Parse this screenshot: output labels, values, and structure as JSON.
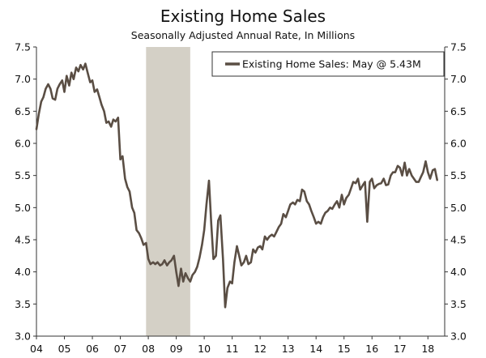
{
  "chart_data": {
    "type": "line",
    "title": "Existing Home Sales",
    "subtitle": "Seasonally Adjusted Annual Rate, In Millions",
    "legend": {
      "label": "Existing Home Sales: May @ 5.43M",
      "placement": "top-right"
    },
    "y_ticks": [
      "3.0",
      "3.5",
      "4.0",
      "4.5",
      "5.0",
      "5.5",
      "6.0",
      "6.5",
      "7.0",
      "7.5"
    ],
    "x_ticks": [
      "04",
      "05",
      "06",
      "07",
      "08",
      "09",
      "10",
      "11",
      "12",
      "13",
      "14",
      "15",
      "16",
      "17",
      "18"
    ],
    "ylim": [
      3.0,
      7.5
    ],
    "xlim": [
      2004.0,
      2018.6
    ],
    "recession": {
      "start": 2007.92,
      "end": 2009.5
    },
    "colors": {
      "line": "#5a4e44",
      "recession": "#d4d0c6",
      "axis": "#333333"
    },
    "series": [
      {
        "name": "Existing Home Sales: May @ 5.43M",
        "x": [
          2004.0,
          2004.08,
          2004.17,
          2004.25,
          2004.33,
          2004.42,
          2004.5,
          2004.58,
          2004.67,
          2004.75,
          2004.83,
          2004.92,
          2005.0,
          2005.08,
          2005.17,
          2005.25,
          2005.33,
          2005.42,
          2005.5,
          2005.58,
          2005.67,
          2005.75,
          2005.83,
          2005.92,
          2006.0,
          2006.08,
          2006.17,
          2006.25,
          2006.33,
          2006.42,
          2006.5,
          2006.58,
          2006.67,
          2006.75,
          2006.83,
          2006.92,
          2007.0,
          2007.08,
          2007.17,
          2007.25,
          2007.33,
          2007.42,
          2007.5,
          2007.58,
          2007.67,
          2007.75,
          2007.83,
          2007.92,
          2008.0,
          2008.08,
          2008.17,
          2008.25,
          2008.33,
          2008.42,
          2008.5,
          2008.58,
          2008.67,
          2008.75,
          2008.83,
          2008.92,
          2009.0,
          2009.08,
          2009.17,
          2009.25,
          2009.33,
          2009.42,
          2009.5,
          2009.58,
          2009.67,
          2009.75,
          2009.83,
          2009.92,
          2010.0,
          2010.08,
          2010.17,
          2010.25,
          2010.33,
          2010.42,
          2010.5,
          2010.58,
          2010.67,
          2010.75,
          2010.83,
          2010.92,
          2011.0,
          2011.08,
          2011.17,
          2011.25,
          2011.33,
          2011.42,
          2011.5,
          2011.58,
          2011.67,
          2011.75,
          2011.83,
          2011.92,
          2012.0,
          2012.08,
          2012.17,
          2012.25,
          2012.33,
          2012.42,
          2012.5,
          2012.58,
          2012.67,
          2012.75,
          2012.83,
          2012.92,
          2013.0,
          2013.08,
          2013.17,
          2013.25,
          2013.33,
          2013.42,
          2013.5,
          2013.58,
          2013.67,
          2013.75,
          2013.83,
          2013.92,
          2014.0,
          2014.08,
          2014.17,
          2014.25,
          2014.33,
          2014.42,
          2014.5,
          2014.58,
          2014.67,
          2014.75,
          2014.83,
          2014.92,
          2015.0,
          2015.08,
          2015.17,
          2015.25,
          2015.33,
          2015.42,
          2015.5,
          2015.58,
          2015.67,
          2015.75,
          2015.83,
          2015.92,
          2016.0,
          2016.08,
          2016.17,
          2016.25,
          2016.33,
          2016.42,
          2016.5,
          2016.58,
          2016.67,
          2016.75,
          2016.83,
          2016.92,
          2017.0,
          2017.08,
          2017.17,
          2017.25,
          2017.33,
          2017.42,
          2017.5,
          2017.58,
          2017.67,
          2017.75,
          2017.83,
          2017.92,
          2018.0,
          2018.08,
          2018.17,
          2018.25,
          2018.33
        ],
        "y": [
          6.22,
          6.45,
          6.65,
          6.72,
          6.85,
          6.92,
          6.85,
          6.7,
          6.68,
          6.85,
          6.92,
          6.98,
          6.8,
          7.05,
          6.9,
          7.1,
          7.0,
          7.18,
          7.12,
          7.22,
          7.15,
          7.24,
          7.1,
          6.95,
          6.98,
          6.8,
          6.84,
          6.72,
          6.6,
          6.5,
          6.32,
          6.34,
          6.26,
          6.37,
          6.34,
          6.4,
          5.75,
          5.8,
          5.45,
          5.32,
          5.25,
          5.0,
          4.92,
          4.65,
          4.6,
          4.52,
          4.42,
          4.45,
          4.2,
          4.12,
          4.15,
          4.12,
          4.15,
          4.1,
          4.12,
          4.18,
          4.1,
          4.15,
          4.18,
          4.25,
          4.0,
          3.78,
          4.05,
          3.85,
          3.98,
          3.9,
          3.85,
          3.95,
          4.0,
          4.08,
          4.22,
          4.42,
          4.65,
          5.05,
          5.42,
          4.75,
          4.2,
          4.25,
          4.8,
          4.88,
          4.2,
          3.45,
          3.75,
          3.85,
          3.82,
          4.15,
          4.4,
          4.25,
          4.1,
          4.15,
          4.25,
          4.12,
          4.15,
          4.35,
          4.3,
          4.38,
          4.4,
          4.35,
          4.55,
          4.5,
          4.55,
          4.58,
          4.55,
          4.62,
          4.7,
          4.75,
          4.9,
          4.85,
          4.95,
          5.05,
          5.08,
          5.05,
          5.12,
          5.1,
          5.28,
          5.25,
          5.1,
          5.05,
          4.95,
          4.85,
          4.75,
          4.78,
          4.75,
          4.85,
          4.92,
          4.95,
          5.0,
          4.98,
          5.05,
          5.1,
          5.0,
          5.2,
          5.05,
          5.15,
          5.2,
          5.3,
          5.4,
          5.38,
          5.45,
          5.28,
          5.35,
          5.4,
          4.78,
          5.4,
          5.45,
          5.3,
          5.35,
          5.37,
          5.38,
          5.45,
          5.35,
          5.36,
          5.5,
          5.55,
          5.55,
          5.65,
          5.62,
          5.5,
          5.7,
          5.5,
          5.6,
          5.5,
          5.45,
          5.4,
          5.4,
          5.48,
          5.55,
          5.72,
          5.55,
          5.45,
          5.58,
          5.6,
          5.43
        ]
      }
    ]
  }
}
